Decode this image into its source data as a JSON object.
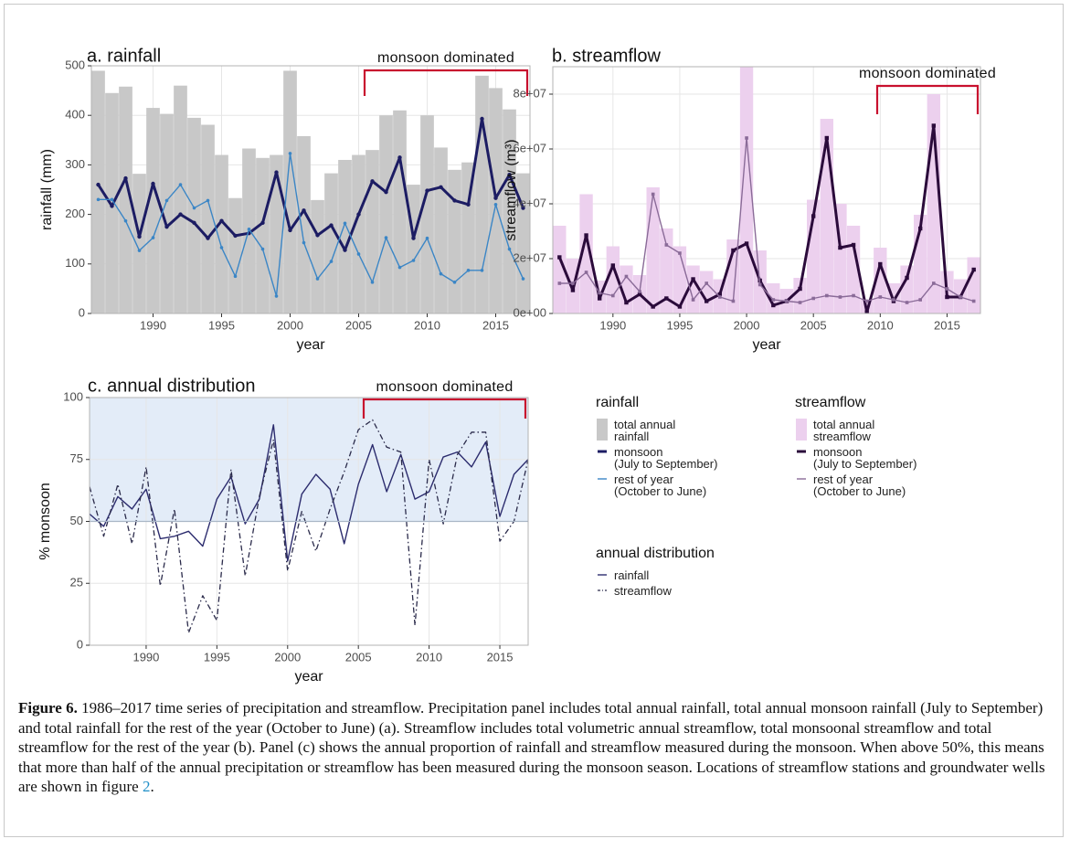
{
  "chart_data": [
    {
      "type": "bar",
      "title": "a. rainfall",
      "xlabel": "year",
      "ylabel": "rainfall (mm)",
      "annotation": "monsoon dominated",
      "legend_title": "rainfall",
      "x": [
        1986,
        1987,
        1988,
        1989,
        1990,
        1991,
        1992,
        1993,
        1994,
        1995,
        1996,
        1997,
        1998,
        1999,
        2000,
        2001,
        2002,
        2003,
        2004,
        2005,
        2006,
        2007,
        2008,
        2009,
        2010,
        2011,
        2012,
        2013,
        2014,
        2015,
        2016,
        2017
      ],
      "xlim": [
        1985.5,
        2017.5
      ],
      "xticks": [
        1990,
        1995,
        2000,
        2005,
        2010,
        2015
      ],
      "ylim": [
        0,
        500
      ],
      "yticks": [
        0,
        100,
        200,
        300,
        400,
        500
      ],
      "grid": true,
      "series": [
        {
          "name": "total annual\nrainfall",
          "mark": "bar",
          "color": "#c8c8c8",
          "values": [
            490,
            445,
            458,
            282,
            415,
            403,
            460,
            395,
            381,
            320,
            233,
            333,
            314,
            320,
            490,
            358,
            229,
            283,
            310,
            320,
            330,
            400,
            410,
            260,
            400,
            335,
            290,
            305,
            480,
            455,
            412,
            283
          ]
        },
        {
          "name": "monsoon\n(July to September)",
          "mark": "line",
          "color": "#1c1c63",
          "width": 3,
          "values": [
            260,
            217,
            273,
            155,
            262,
            175,
            200,
            183,
            152,
            187,
            157,
            162,
            183,
            285,
            168,
            208,
            158,
            178,
            128,
            200,
            267,
            245,
            315,
            152,
            248,
            255,
            228,
            220,
            393,
            233,
            280,
            213
          ]
        },
        {
          "name": "rest of year\n(October to June)",
          "mark": "line",
          "color": "#3b86c6",
          "width": 1.4,
          "values": [
            230,
            230,
            187,
            127,
            153,
            228,
            260,
            213,
            228,
            133,
            75,
            170,
            130,
            35,
            323,
            143,
            70,
            105,
            182,
            120,
            63,
            153,
            93,
            107,
            152,
            80,
            63,
            87,
            87,
            220,
            130,
            70
          ]
        }
      ]
    },
    {
      "type": "bar",
      "title": "b. streamflow",
      "xlabel": "year",
      "ylabel": "streamflow (m³)",
      "annotation": "monsoon dominated",
      "legend_title": "streamflow",
      "x": [
        1986,
        1987,
        1988,
        1989,
        1990,
        1991,
        1992,
        1993,
        1994,
        1995,
        1996,
        1997,
        1998,
        1999,
        2000,
        2001,
        2002,
        2003,
        2004,
        2005,
        2006,
        2007,
        2008,
        2009,
        2010,
        2011,
        2012,
        2013,
        2014,
        2015,
        2016,
        2017
      ],
      "xlim": [
        1985.5,
        2017.5
      ],
      "xticks": [
        1990,
        1995,
        2000,
        2005,
        2010,
        2015
      ],
      "ylim": [
        0,
        90000000
      ],
      "yticks": [
        {
          "value": 0,
          "label": "0e+00"
        },
        {
          "value": 20000000,
          "label": "2e+07"
        },
        {
          "value": 40000000,
          "label": "4e+07"
        },
        {
          "value": 60000000,
          "label": "6e+07"
        },
        {
          "value": 80000000,
          "label": "8e+07"
        }
      ],
      "grid": true,
      "series": [
        {
          "name": "total annual\nstreamflow",
          "mark": "bar",
          "color": "#ecd0ee",
          "values": [
            32000000,
            20000000,
            43500000,
            12000000,
            24500000,
            17500000,
            14000000,
            46000000,
            31000000,
            24500000,
            17500000,
            15500000,
            12500000,
            27000000,
            90000000,
            23000000,
            11000000,
            9000000,
            13000000,
            41500000,
            71000000,
            40000000,
            32000000,
            5000000,
            24000000,
            11000000,
            17500000,
            36000000,
            80000000,
            15500000,
            12500000,
            20500000
          ]
        },
        {
          "name": "monsoon\n(July to September)",
          "mark": "line",
          "color": "#2b0b3b",
          "width": 3,
          "values": [
            20500000,
            8500000,
            28500000,
            5500000,
            17500000,
            4000000,
            7000000,
            2500000,
            5500000,
            2500000,
            12500000,
            4500000,
            7000000,
            23000000,
            25500000,
            12000000,
            3000000,
            4500000,
            9000000,
            35500000,
            64000000,
            24000000,
            25000000,
            500000,
            18000000,
            4500000,
            13000000,
            31000000,
            68500000,
            6000000,
            6000000,
            16000000
          ]
        },
        {
          "name": "rest of year\n(October to June)",
          "mark": "line",
          "color": "#8a6b98",
          "width": 1.4,
          "values": [
            11000000,
            11000000,
            15000000,
            7500000,
            6500000,
            13500000,
            8000000,
            43500000,
            25000000,
            22000000,
            5000000,
            11000000,
            6000000,
            4500000,
            64000000,
            10500000,
            5000000,
            4500000,
            4000000,
            5500000,
            6500000,
            6000000,
            6500000,
            4500000,
            6000000,
            5000000,
            4000000,
            5000000,
            11000000,
            9000000,
            6000000,
            4500000
          ]
        }
      ]
    },
    {
      "type": "line",
      "title": "c. annual distribution",
      "xlabel": "year",
      "ylabel": "% monsoon",
      "annotation": "monsoon dominated",
      "legend_title": "annual distribution",
      "x": [
        1986,
        1987,
        1988,
        1989,
        1990,
        1991,
        1992,
        1993,
        1994,
        1995,
        1996,
        1997,
        1998,
        1999,
        2000,
        2001,
        2002,
        2003,
        2004,
        2005,
        2006,
        2007,
        2008,
        2009,
        2010,
        2011,
        2012,
        2013,
        2014,
        2015,
        2016,
        2017
      ],
      "xlim": [
        1986,
        2017
      ],
      "xticks": [
        1990,
        1995,
        2000,
        2005,
        2010,
        2015
      ],
      "ylim": [
        0,
        100
      ],
      "yticks": [
        0,
        25,
        50,
        75,
        100
      ],
      "grid": true,
      "threshold": 50,
      "shade_color": "#e3ecf8",
      "series": [
        {
          "name": "rainfall",
          "mark": "line",
          "color": "#2c2c6e",
          "width": 1.4,
          "dash": "solid",
          "values": [
            53,
            48,
            60,
            55,
            63,
            43,
            44,
            46,
            40,
            59,
            68,
            49,
            59,
            89,
            34,
            61,
            69,
            63,
            41,
            65,
            81,
            62,
            77,
            59,
            62,
            76,
            78,
            72,
            82,
            52,
            69,
            75
          ]
        },
        {
          "name": "streamflow",
          "mark": "line",
          "color": "#2a2a4a",
          "width": 1.3,
          "dash": "dashdot",
          "values": [
            64,
            44,
            65,
            41,
            72,
            24,
            55,
            5,
            20,
            10,
            71,
            28,
            60,
            83,
            30,
            54,
            38,
            55,
            70,
            87,
            91,
            80,
            78,
            8,
            75,
            49,
            77,
            86,
            86,
            42,
            50,
            75
          ]
        }
      ]
    }
  ],
  "caption": {
    "label": "Figure 6.",
    "text": "1986–2017 time series of precipitation and streamflow. Precipitation panel includes total annual rainfall, total annual monsoon rainfall (July to September) and total rainfall for the rest of the year (October to June) (a). Streamflow includes total volumetric annual streamflow, total monsoonal streamflow and total streamflow for the rest of the year (b). Panel (c) shows the annual proportion of rainfall and streamflow measured during the monsoon. When above 50%, this means that more than half of the annual precipitation or streamflow has been measured during the monsoon season. Locations of streamflow stations and groundwater wells are shown in figure ",
    "ref": "2",
    "end": "."
  }
}
